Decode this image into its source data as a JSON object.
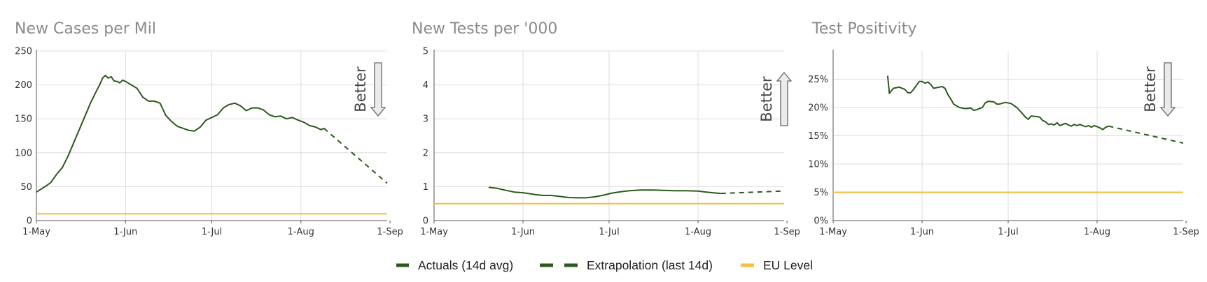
{
  "colors": {
    "actual": "#2b5a1e",
    "eu": "#f5be3c",
    "grid": "#dddddd",
    "axis": "#555555",
    "arrow_fill": "#ebebeb",
    "arrow_stroke": "#666666"
  },
  "better_label": "Better",
  "legend": {
    "items": [
      {
        "label": "Actuals (14d avg)",
        "style": "solid-green"
      },
      {
        "label": "Extrapolation (last 14d)",
        "style": "dashed-green"
      },
      {
        "label": "EU Level",
        "style": "solid-yellow"
      }
    ]
  },
  "chart_data": [
    {
      "type": "line",
      "title": "New Cases per Mil",
      "xlabel": "",
      "ylabel": "",
      "x_domain_days": [
        0,
        122
      ],
      "xticks": [
        {
          "label": "1-May",
          "day": 0
        },
        {
          "label": "1-Jun",
          "day": 31
        },
        {
          "label": "1-Jul",
          "day": 61
        },
        {
          "label": "1-Aug",
          "day": 92
        },
        {
          "label": "1-Sep",
          "day": 123
        }
      ],
      "ylim": [
        0,
        250
      ],
      "yticks": [
        {
          "value": 0,
          "label": "0"
        },
        {
          "value": 50,
          "label": "50"
        },
        {
          "value": 100,
          "label": "100"
        },
        {
          "value": 150,
          "label": "150"
        },
        {
          "value": 200,
          "label": "200"
        },
        {
          "value": 250,
          "label": "250"
        }
      ],
      "better_direction": "down",
      "series": [
        {
          "role": "actual",
          "points": [
            [
              0,
              42
            ],
            [
              3,
              50
            ],
            [
              5,
              56
            ],
            [
              7,
              68
            ],
            [
              9,
              78
            ],
            [
              11,
              95
            ],
            [
              13,
              115
            ],
            [
              15,
              135
            ],
            [
              17,
              155
            ],
            [
              19,
              175
            ],
            [
              21,
              192
            ],
            [
              22,
              200
            ],
            [
              23,
              210
            ],
            [
              24,
              214
            ],
            [
              25,
              210
            ],
            [
              26,
              212
            ],
            [
              27,
              206
            ],
            [
              28,
              205
            ],
            [
              29,
              203
            ],
            [
              30,
              207
            ],
            [
              31,
              205
            ],
            [
              33,
              200
            ],
            [
              35,
              195
            ],
            [
              37,
              182
            ],
            [
              39,
              176
            ],
            [
              41,
              176
            ],
            [
              43,
              173
            ],
            [
              45,
              155
            ],
            [
              47,
              146
            ],
            [
              49,
              139
            ],
            [
              51,
              136
            ],
            [
              53,
              133
            ],
            [
              55,
              132
            ],
            [
              57,
              138
            ],
            [
              59,
              148
            ],
            [
              61,
              152
            ],
            [
              63,
              156
            ],
            [
              65,
              166
            ],
            [
              67,
              171
            ],
            [
              69,
              173
            ],
            [
              71,
              169
            ],
            [
              73,
              162
            ],
            [
              75,
              166
            ],
            [
              77,
              166
            ],
            [
              79,
              163
            ],
            [
              81,
              156
            ],
            [
              83,
              153
            ],
            [
              85,
              154
            ],
            [
              87,
              150
            ],
            [
              89,
              152
            ],
            [
              91,
              148
            ],
            [
              93,
              145
            ],
            [
              95,
              140
            ],
            [
              97,
              138
            ],
            [
              99,
              134
            ],
            [
              100,
              136
            ]
          ]
        },
        {
          "role": "extrapolation",
          "points": [
            [
              100,
              136
            ],
            [
              122,
              55
            ]
          ]
        },
        {
          "role": "eu",
          "points": [
            [
              0,
              10
            ],
            [
              122,
              10
            ]
          ]
        }
      ]
    },
    {
      "type": "line",
      "title": "New Tests per '000",
      "xlabel": "",
      "ylabel": "",
      "x_domain_days": [
        0,
        122
      ],
      "xticks": [
        {
          "label": "1-May",
          "day": 0
        },
        {
          "label": "1-Jun",
          "day": 31
        },
        {
          "label": "1-Jul",
          "day": 61
        },
        {
          "label": "1-Aug",
          "day": 92
        },
        {
          "label": "1-Sep",
          "day": 123
        }
      ],
      "ylim": [
        0,
        5
      ],
      "yticks": [
        {
          "value": 0,
          "label": "0"
        },
        {
          "value": 1,
          "label": "1"
        },
        {
          "value": 2,
          "label": "2"
        },
        {
          "value": 3,
          "label": "3"
        },
        {
          "value": 4,
          "label": "4"
        },
        {
          "value": 5,
          "label": "5"
        }
      ],
      "better_direction": "up",
      "series": [
        {
          "role": "actual",
          "points": [
            [
              19,
              0.98
            ],
            [
              22,
              0.95
            ],
            [
              25,
              0.89
            ],
            [
              28,
              0.84
            ],
            [
              31,
              0.82
            ],
            [
              35,
              0.77
            ],
            [
              38,
              0.74
            ],
            [
              41,
              0.74
            ],
            [
              44,
              0.71
            ],
            [
              47,
              0.68
            ],
            [
              50,
              0.67
            ],
            [
              53,
              0.67
            ],
            [
              56,
              0.7
            ],
            [
              59,
              0.75
            ],
            [
              62,
              0.81
            ],
            [
              65,
              0.85
            ],
            [
              68,
              0.88
            ],
            [
              72,
              0.9
            ],
            [
              76,
              0.9
            ],
            [
              80,
              0.89
            ],
            [
              84,
              0.88
            ],
            [
              88,
              0.88
            ],
            [
              92,
              0.87
            ],
            [
              95,
              0.84
            ],
            [
              97,
              0.82
            ],
            [
              100,
              0.8
            ]
          ]
        },
        {
          "role": "extrapolation",
          "points": [
            [
              100,
              0.8
            ],
            [
              122,
              0.87
            ]
          ]
        },
        {
          "role": "eu",
          "points": [
            [
              0,
              0.5
            ],
            [
              122,
              0.5
            ]
          ]
        }
      ]
    },
    {
      "type": "line",
      "title": "Test Positivity",
      "xlabel": "",
      "ylabel": "",
      "x_domain_days": [
        0,
        122
      ],
      "xticks": [
        {
          "label": "1-May",
          "day": 0
        },
        {
          "label": "1-Jun",
          "day": 31
        },
        {
          "label": "1-Jul",
          "day": 61
        },
        {
          "label": "1-Aug",
          "day": 92
        },
        {
          "label": "1-Sep",
          "day": 123
        }
      ],
      "ylim": [
        0,
        30
      ],
      "yticks": [
        {
          "value": 0,
          "label": "0%"
        },
        {
          "value": 5,
          "label": "5%"
        },
        {
          "value": 10,
          "label": "10%"
        },
        {
          "value": 15,
          "label": "15%"
        },
        {
          "value": 20,
          "label": "20%"
        },
        {
          "value": 25,
          "label": "25%"
        }
      ],
      "better_direction": "down",
      "series": [
        {
          "role": "actual",
          "points": [
            [
              19,
              25.6
            ],
            [
              19.6,
              22.5
            ],
            [
              21,
              23.4
            ],
            [
              23,
              23.6
            ],
            [
              25,
              23.2
            ],
            [
              26,
              22.6
            ],
            [
              27,
              22.6
            ],
            [
              28,
              23.2
            ],
            [
              30,
              24.6
            ],
            [
              31,
              24.6
            ],
            [
              32,
              24.3
            ],
            [
              33,
              24.5
            ],
            [
              34,
              24.1
            ],
            [
              35,
              23.4
            ],
            [
              37,
              23.6
            ],
            [
              38,
              23.7
            ],
            [
              39,
              23.4
            ],
            [
              40,
              22.3
            ],
            [
              41,
              21.5
            ],
            [
              42,
              20.6
            ],
            [
              44,
              20.0
            ],
            [
              46,
              19.8
            ],
            [
              48,
              19.9
            ],
            [
              49,
              19.5
            ],
            [
              50,
              19.6
            ],
            [
              52,
              20.0
            ],
            [
              53,
              20.8
            ],
            [
              54,
              21.1
            ],
            [
              56,
              21.0
            ],
            [
              57,
              20.6
            ],
            [
              58,
              20.6
            ],
            [
              60,
              20.9
            ],
            [
              62,
              20.7
            ],
            [
              64,
              20.0
            ],
            [
              66,
              18.9
            ],
            [
              67,
              18.3
            ],
            [
              68,
              17.9
            ],
            [
              69,
              18.5
            ],
            [
              71,
              18.4
            ],
            [
              72,
              18.3
            ],
            [
              73,
              17.7
            ],
            [
              74,
              17.5
            ],
            [
              75,
              17.0
            ],
            [
              76,
              17.1
            ],
            [
              77,
              16.9
            ],
            [
              78,
              17.3
            ],
            [
              79,
              16.8
            ],
            [
              80,
              17.0
            ],
            [
              81,
              17.2
            ],
            [
              82,
              16.9
            ],
            [
              83,
              16.7
            ],
            [
              84,
              17.0
            ],
            [
              85,
              16.8
            ],
            [
              86,
              17.0
            ],
            [
              87,
              16.8
            ],
            [
              88,
              16.6
            ],
            [
              89,
              16.8
            ],
            [
              90,
              16.5
            ],
            [
              91,
              16.8
            ],
            [
              92,
              16.6
            ],
            [
              93,
              16.4
            ],
            [
              94,
              16.1
            ],
            [
              95,
              16.5
            ],
            [
              96,
              16.7
            ]
          ]
        },
        {
          "role": "extrapolation",
          "points": [
            [
              96,
              16.7
            ],
            [
              122,
              13.7
            ]
          ]
        },
        {
          "role": "eu",
          "points": [
            [
              0,
              5
            ],
            [
              122,
              5
            ]
          ]
        }
      ]
    }
  ]
}
